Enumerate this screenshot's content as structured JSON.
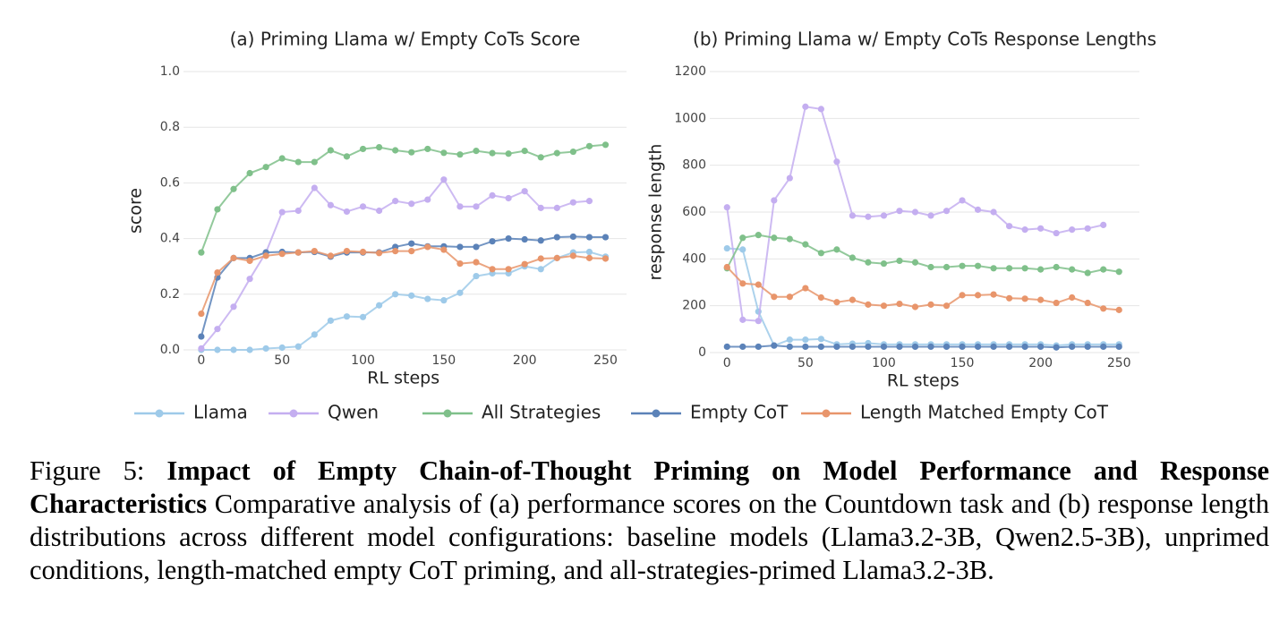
{
  "chart_data": [
    {
      "type": "line",
      "title": "(a) Priming Llama w/ Empty CoTs Score",
      "x_label": "RL steps",
      "y_label": "score",
      "x": [
        0,
        10,
        20,
        30,
        40,
        50,
        60,
        70,
        80,
        90,
        100,
        110,
        120,
        130,
        140,
        150,
        160,
        170,
        180,
        190,
        200,
        210,
        220,
        230,
        240,
        250
      ],
      "xlim": [
        -11,
        263
      ],
      "xticks": [
        0,
        50,
        100,
        150,
        200,
        250
      ],
      "ylim": [
        0,
        1
      ],
      "yticks": [
        {
          "value": 0,
          "label": "0.0"
        },
        0.2,
        0.4,
        0.6,
        0.8,
        {
          "value": 1,
          "label": "1.0"
        }
      ],
      "grid": true,
      "series": [
        {
          "name": "Llama",
          "color": "#9ecae9",
          "values": [
            0.0,
            0.0,
            0.0,
            0.0,
            0.005,
            0.008,
            0.012,
            0.055,
            0.105,
            0.12,
            0.118,
            0.16,
            0.2,
            0.195,
            0.183,
            0.178,
            0.205,
            0.265,
            0.275,
            0.275,
            0.3,
            0.29,
            0.33,
            0.35,
            0.352,
            0.335
          ]
        },
        {
          "name": "Qwen",
          "color": "#c4aef0",
          "values": [
            0.005,
            0.075,
            0.155,
            0.255,
            0.35,
            0.495,
            0.5,
            0.582,
            0.52,
            0.497,
            0.515,
            0.5,
            0.535,
            0.525,
            0.54,
            0.612,
            0.515,
            0.515,
            0.555,
            0.545,
            0.57,
            0.51,
            0.51,
            0.53,
            0.535,
            null
          ]
        },
        {
          "name": "All Strategies",
          "color": "#7fc08a",
          "values": [
            0.35,
            0.505,
            0.578,
            0.635,
            0.657,
            0.688,
            0.675,
            0.675,
            0.717,
            0.695,
            0.722,
            0.728,
            0.717,
            0.71,
            0.722,
            0.708,
            0.702,
            0.715,
            0.707,
            0.705,
            0.715,
            0.692,
            0.707,
            0.712,
            0.732,
            0.737
          ]
        },
        {
          "name": "Empty CoT",
          "color": "#5b82b8",
          "values": [
            0.048,
            0.26,
            0.33,
            0.33,
            0.35,
            0.352,
            0.35,
            0.352,
            0.335,
            0.35,
            0.35,
            0.35,
            0.37,
            0.382,
            0.372,
            0.372,
            0.37,
            0.37,
            0.39,
            0.4,
            0.397,
            0.393,
            0.405,
            0.407,
            0.405,
            0.405
          ]
        },
        {
          "name": "Length Matched Empty CoT",
          "color": "#e8956b",
          "values": [
            0.13,
            0.278,
            0.33,
            0.32,
            0.338,
            0.345,
            0.35,
            0.355,
            0.338,
            0.355,
            0.352,
            0.348,
            0.355,
            0.355,
            0.37,
            0.36,
            0.31,
            0.315,
            0.29,
            0.29,
            0.308,
            0.328,
            0.33,
            0.338,
            0.33,
            0.328
          ]
        }
      ]
    },
    {
      "type": "line",
      "title": "(b) Priming Llama w/ Empty CoTs Response Lengths",
      "x_label": "RL steps",
      "y_label": "response length",
      "x": [
        0,
        10,
        20,
        30,
        40,
        50,
        60,
        70,
        80,
        90,
        100,
        110,
        120,
        130,
        140,
        150,
        160,
        170,
        180,
        190,
        200,
        210,
        220,
        230,
        240,
        250
      ],
      "xlim": [
        -11,
        263
      ],
      "xticks": [
        0,
        50,
        100,
        150,
        200,
        250
      ],
      "ylim": [
        0,
        1200
      ],
      "yticks": [
        0,
        200,
        400,
        600,
        800,
        1000,
        1200
      ],
      "grid": true,
      "series": [
        {
          "name": "Llama",
          "color": "#9ecae9",
          "values": [
            445,
            440,
            175,
            30,
            55,
            55,
            58,
            35,
            38,
            40,
            35,
            35,
            35,
            35,
            35,
            35,
            35,
            35,
            35,
            35,
            35,
            30,
            35,
            35,
            35,
            35
          ]
        },
        {
          "name": "Qwen",
          "color": "#c4aef0",
          "values": [
            620,
            140,
            135,
            650,
            745,
            1050,
            1040,
            815,
            585,
            580,
            585,
            605,
            600,
            585,
            605,
            650,
            610,
            600,
            540,
            525,
            530,
            510,
            525,
            530,
            545,
            null
          ]
        },
        {
          "name": "All Strategies",
          "color": "#7fc08a",
          "values": [
            360,
            490,
            502,
            490,
            485,
            462,
            425,
            440,
            405,
            385,
            380,
            392,
            385,
            365,
            365,
            370,
            370,
            360,
            360,
            360,
            355,
            365,
            355,
            340,
            355,
            345
          ]
        },
        {
          "name": "Empty CoT",
          "color": "#5b82b8",
          "values": [
            25,
            25,
            25,
            30,
            25,
            25,
            25,
            25,
            25,
            25,
            25,
            25,
            25,
            25,
            25,
            25,
            25,
            25,
            25,
            25,
            25,
            22,
            25,
            25,
            25,
            25
          ]
        },
        {
          "name": "Length Matched Empty CoT",
          "color": "#e8956b",
          "values": [
            365,
            295,
            290,
            238,
            238,
            275,
            235,
            215,
            225,
            205,
            200,
            208,
            195,
            205,
            200,
            245,
            245,
            248,
            232,
            230,
            225,
            212,
            235,
            212,
            188,
            182
          ]
        }
      ]
    }
  ],
  "caption": {
    "label": "Figure 5:",
    "bold_title": "Impact of Empty Chain-of-Thought Priming on Model Performance and Response Characteristics",
    "text": "Comparative analysis of (a) performance scores on the Countdown task and (b) response length distributions across different model configurations: baseline models (Llama3.2-3B, Qwen2.5-3B), unprimed conditions, length-matched empty CoT priming, and all-strategies-primed Llama3.2-3B."
  }
}
